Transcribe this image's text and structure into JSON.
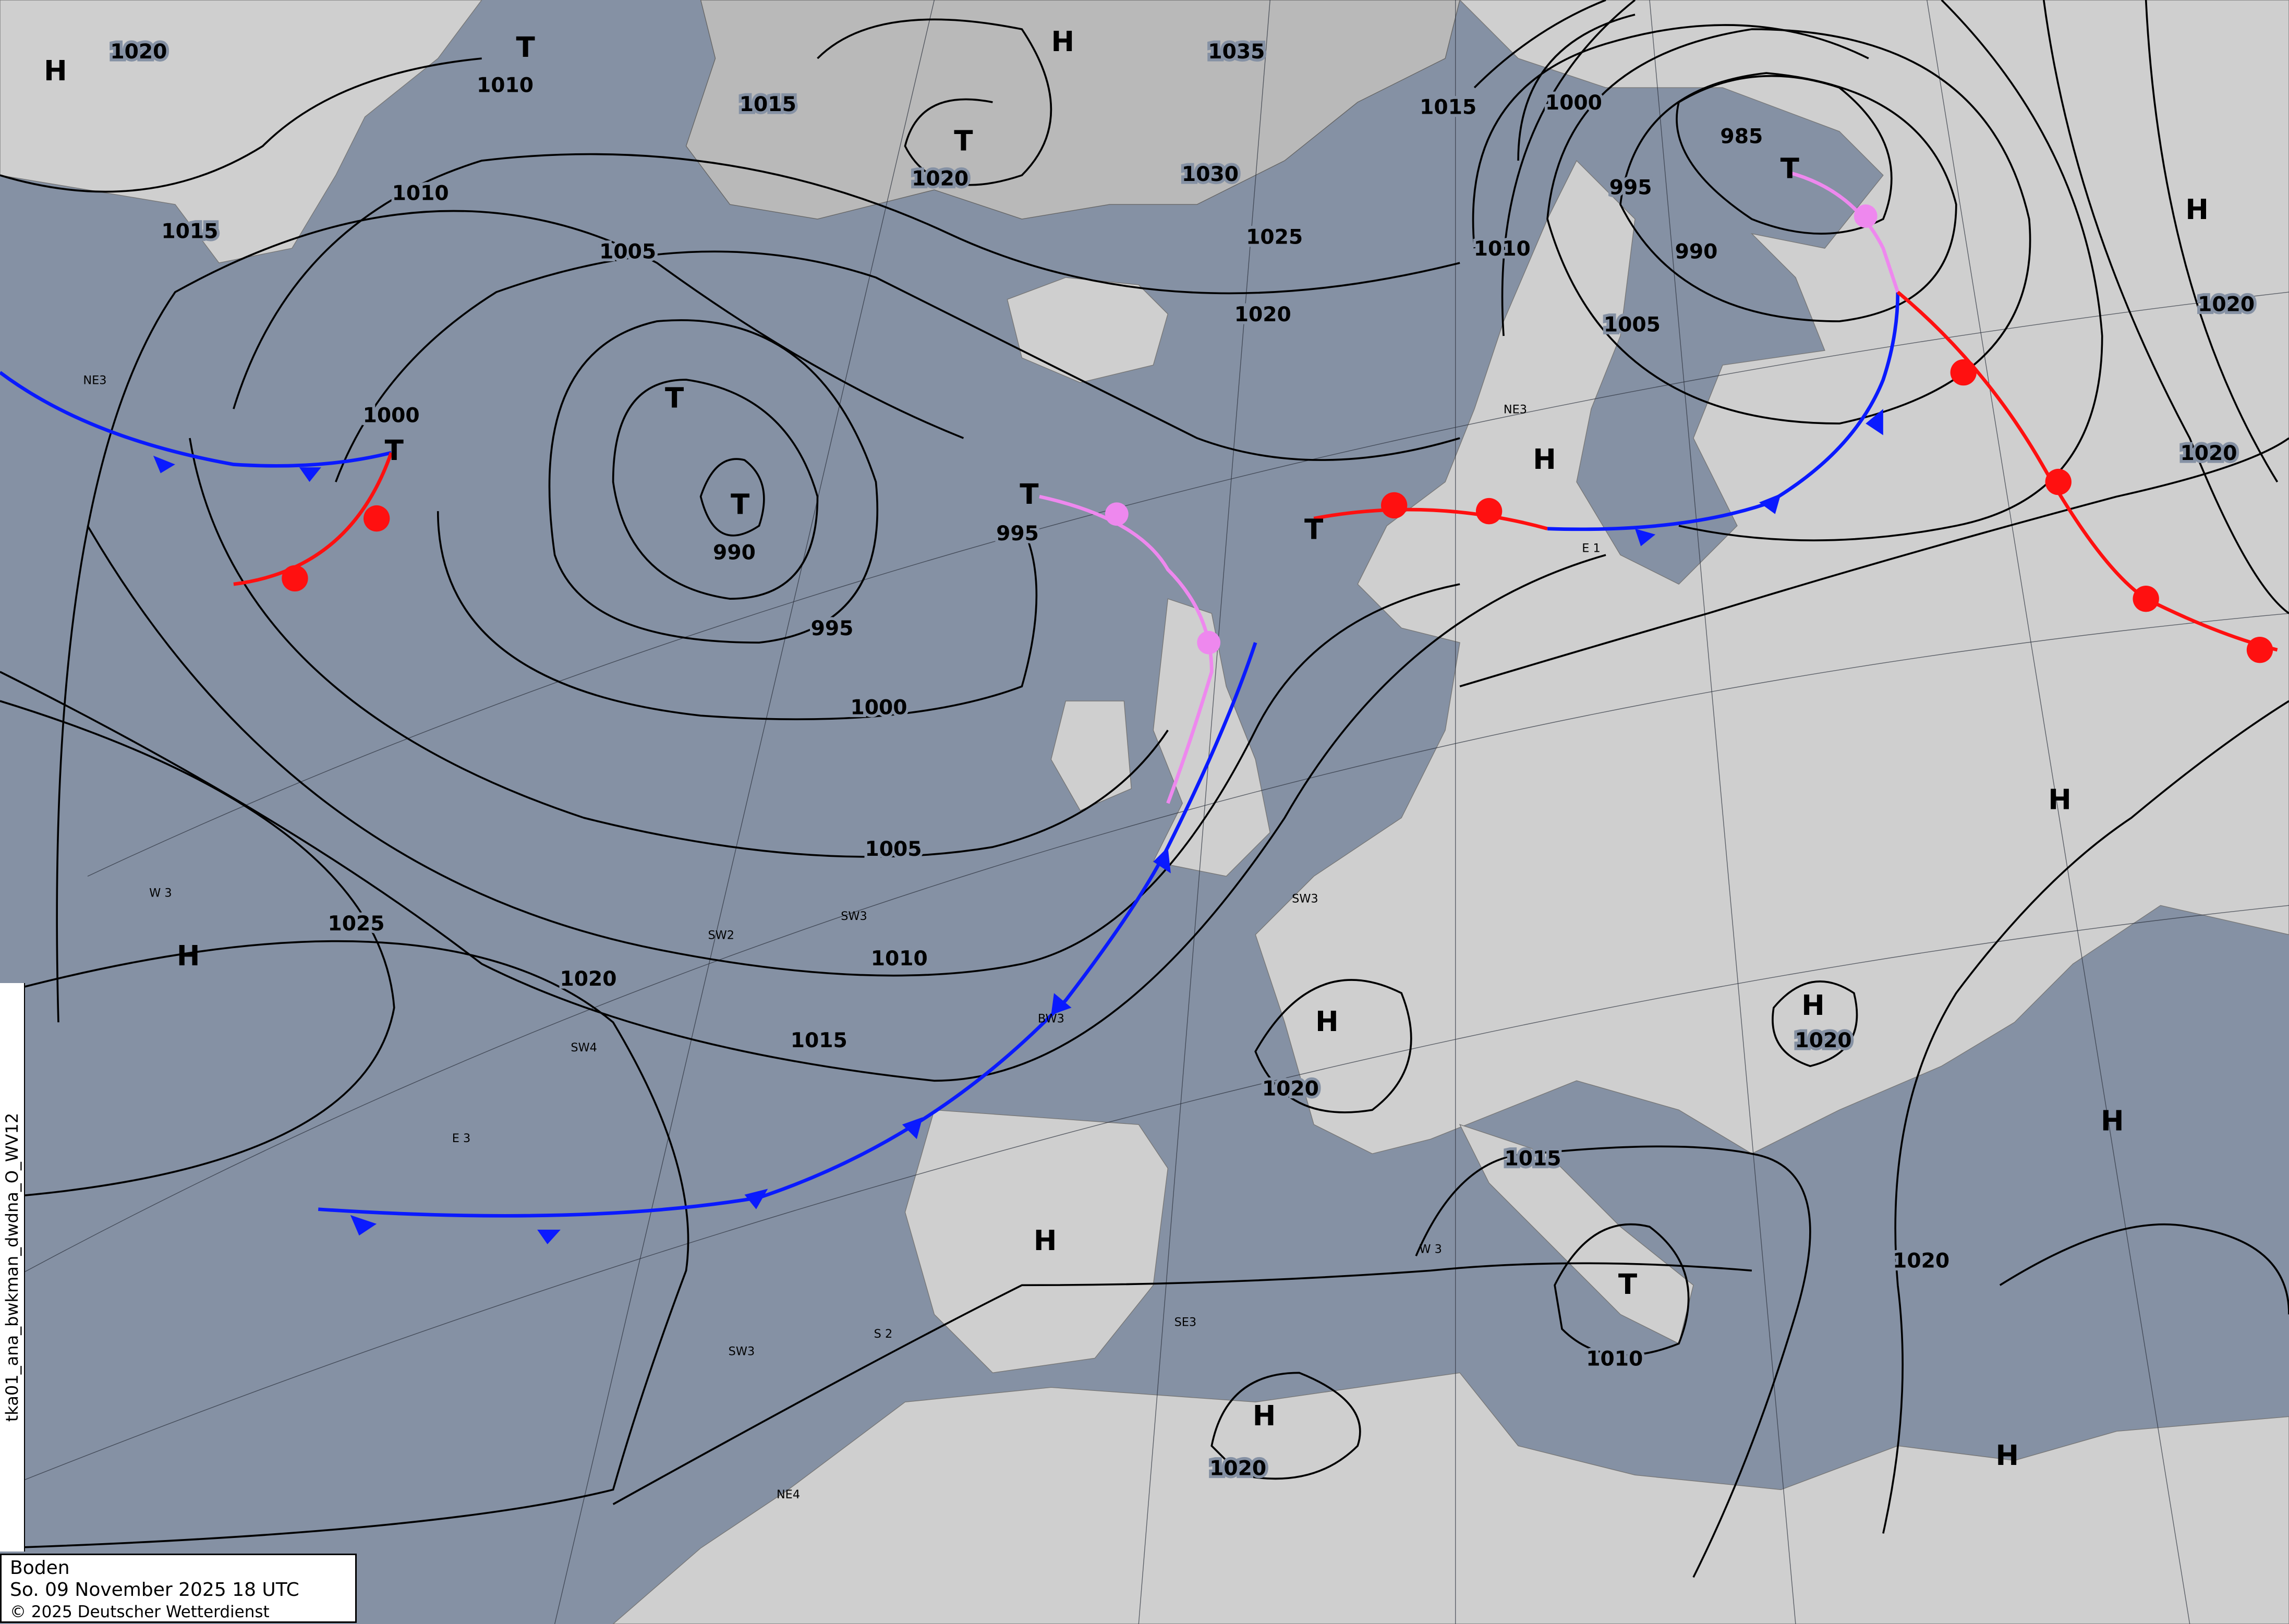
{
  "legend": {
    "level": "Boden",
    "datetime": "So. 09 November 2025 18 UTC",
    "copyright": "© 2025 Deutscher Wetterdienst"
  },
  "product_id": "tka01_ana_bwkman_dwdna_O_WV12",
  "colors": {
    "sea": "#8591a4",
    "land": "#cfcfcf",
    "cold_front": "#0a1aff",
    "warm_front": "#ff1010",
    "occlusion": "#ee88ee"
  },
  "isobar_labels": [
    "1020",
    "1015",
    "1010",
    "1005",
    "1000",
    "995",
    "1000",
    "990",
    "1005",
    "1010",
    "1015",
    "1020",
    "1025",
    "1010",
    "1015",
    "1020",
    "1035",
    "1030",
    "1025",
    "1020",
    "995",
    "1015",
    "1000",
    "985",
    "995",
    "990",
    "1005",
    "1010",
    "1020",
    "1020",
    "1020",
    "1020",
    "1015",
    "1010",
    "1020",
    "1020"
  ],
  "pressure_centers": [
    "H",
    "T",
    "H",
    "T",
    "T",
    "T",
    "T",
    "T",
    "T",
    "H",
    "T",
    "H",
    "H",
    "H",
    "H",
    "H",
    "H",
    "T",
    "H",
    "H",
    "H"
  ],
  "zone_labels": [
    "NE3",
    "W 3",
    "E 3",
    "SW2",
    "SW4",
    "SW3",
    "SW3",
    "SE3",
    "S 2",
    "NE4",
    "E 1",
    "NE3",
    "W 3",
    "BW3",
    "SW3"
  ]
}
